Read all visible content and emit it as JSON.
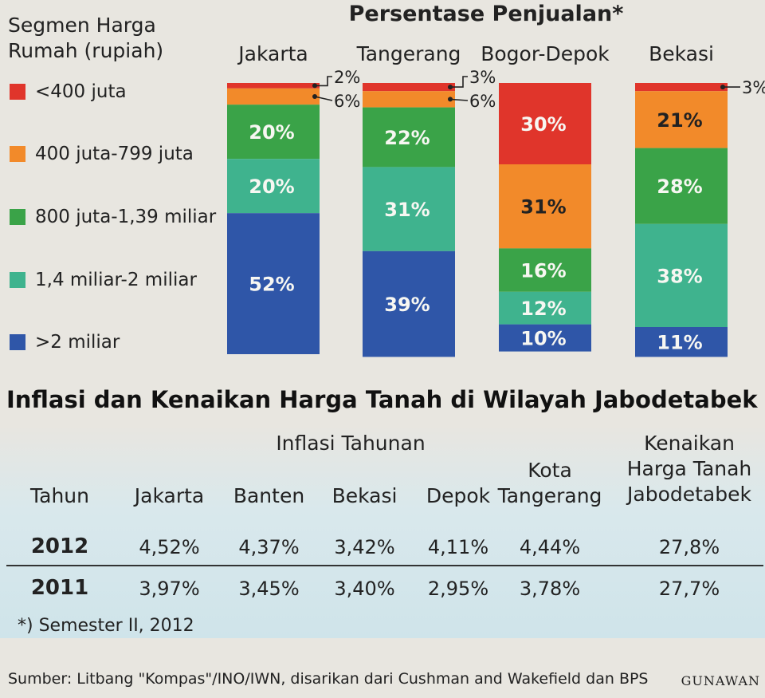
{
  "legend": {
    "title_line1": "Segmen Harga",
    "title_line2": "Rumah (rupiah)",
    "items": [
      {
        "label": "<400 juta",
        "color": "#e0352b"
      },
      {
        "label": "400 juta-799 juta",
        "color": "#f28a2a"
      },
      {
        "label": "800 juta-1,39 miliar",
        "color": "#3aa348"
      },
      {
        "label": "1,4 miliar-2 miliar",
        "color": "#3fb38e"
      },
      {
        "label": ">2 miliar",
        "color": "#2f56a8"
      }
    ]
  },
  "chart_data": {
    "type": "bar",
    "stacked": true,
    "title": "Persentase Penjualan*",
    "categories": [
      "Jakarta",
      "Tangerang",
      "Bogor-Depok",
      "Bekasi"
    ],
    "series": [
      {
        "name": "<400 juta",
        "color": "#e0352b",
        "values": [
          2,
          3,
          30,
          3
        ],
        "labels": [
          "2%",
          "3%",
          "30%",
          "3%"
        ]
      },
      {
        "name": "400 juta-799 juta",
        "color": "#f28a2a",
        "values": [
          6,
          6,
          31,
          21
        ],
        "labels": [
          "6%",
          "6%",
          "31%",
          "21%"
        ]
      },
      {
        "name": "800 juta-1,39 miliar",
        "color": "#3aa348",
        "values": [
          20,
          22,
          16,
          28
        ],
        "labels": [
          "20%",
          "22%",
          "16%",
          "28%"
        ]
      },
      {
        "name": "1,4 miliar-2 miliar",
        "color": "#3fb38e",
        "values": [
          20,
          31,
          12,
          38
        ],
        "labels": [
          "20%",
          "31%",
          "12%",
          "38%"
        ]
      },
      {
        "name": ">2 miliar",
        "color": "#2f56a8",
        "values": [
          52,
          39,
          10,
          11
        ],
        "labels": [
          "52%",
          "39%",
          "10%",
          "11%"
        ]
      }
    ],
    "ylim": [
      0,
      100
    ]
  },
  "table": {
    "title": "Inflasi dan Kenaikan Harga Tanah di Wilayah Jabodetabek",
    "group_header": "Inflasi Tahunan",
    "columns": {
      "year": "Tahun",
      "jakarta": "Jakarta",
      "banten": "Banten",
      "bekasi": "Bekasi",
      "depok": "Depok",
      "kota_tangerang_1": "Kota",
      "kota_tangerang_2": "Tangerang",
      "kenaikan_1": "Kenaikan",
      "kenaikan_2": "Harga Tanah",
      "kenaikan_3": "Jabodetabek"
    },
    "rows": [
      {
        "year": "2012",
        "jakarta": "4,52%",
        "banten": "4,37%",
        "bekasi": "3,42%",
        "depok": "4,11%",
        "tangerang": "4,44%",
        "kenaikan": "27,8%"
      },
      {
        "year": "2011",
        "jakarta": "3,97%",
        "banten": "3,45%",
        "bekasi": "3,40%",
        "depok": "2,95%",
        "tangerang": "3,78%",
        "kenaikan": "27,7%"
      }
    ]
  },
  "footnote": "*) Semester II, 2012",
  "source": "Sumber: Litbang \"Kompas\"/INO/IWN, disarikan dari Cushman and Wakefield dan BPS",
  "credit": "GUNAWAN"
}
